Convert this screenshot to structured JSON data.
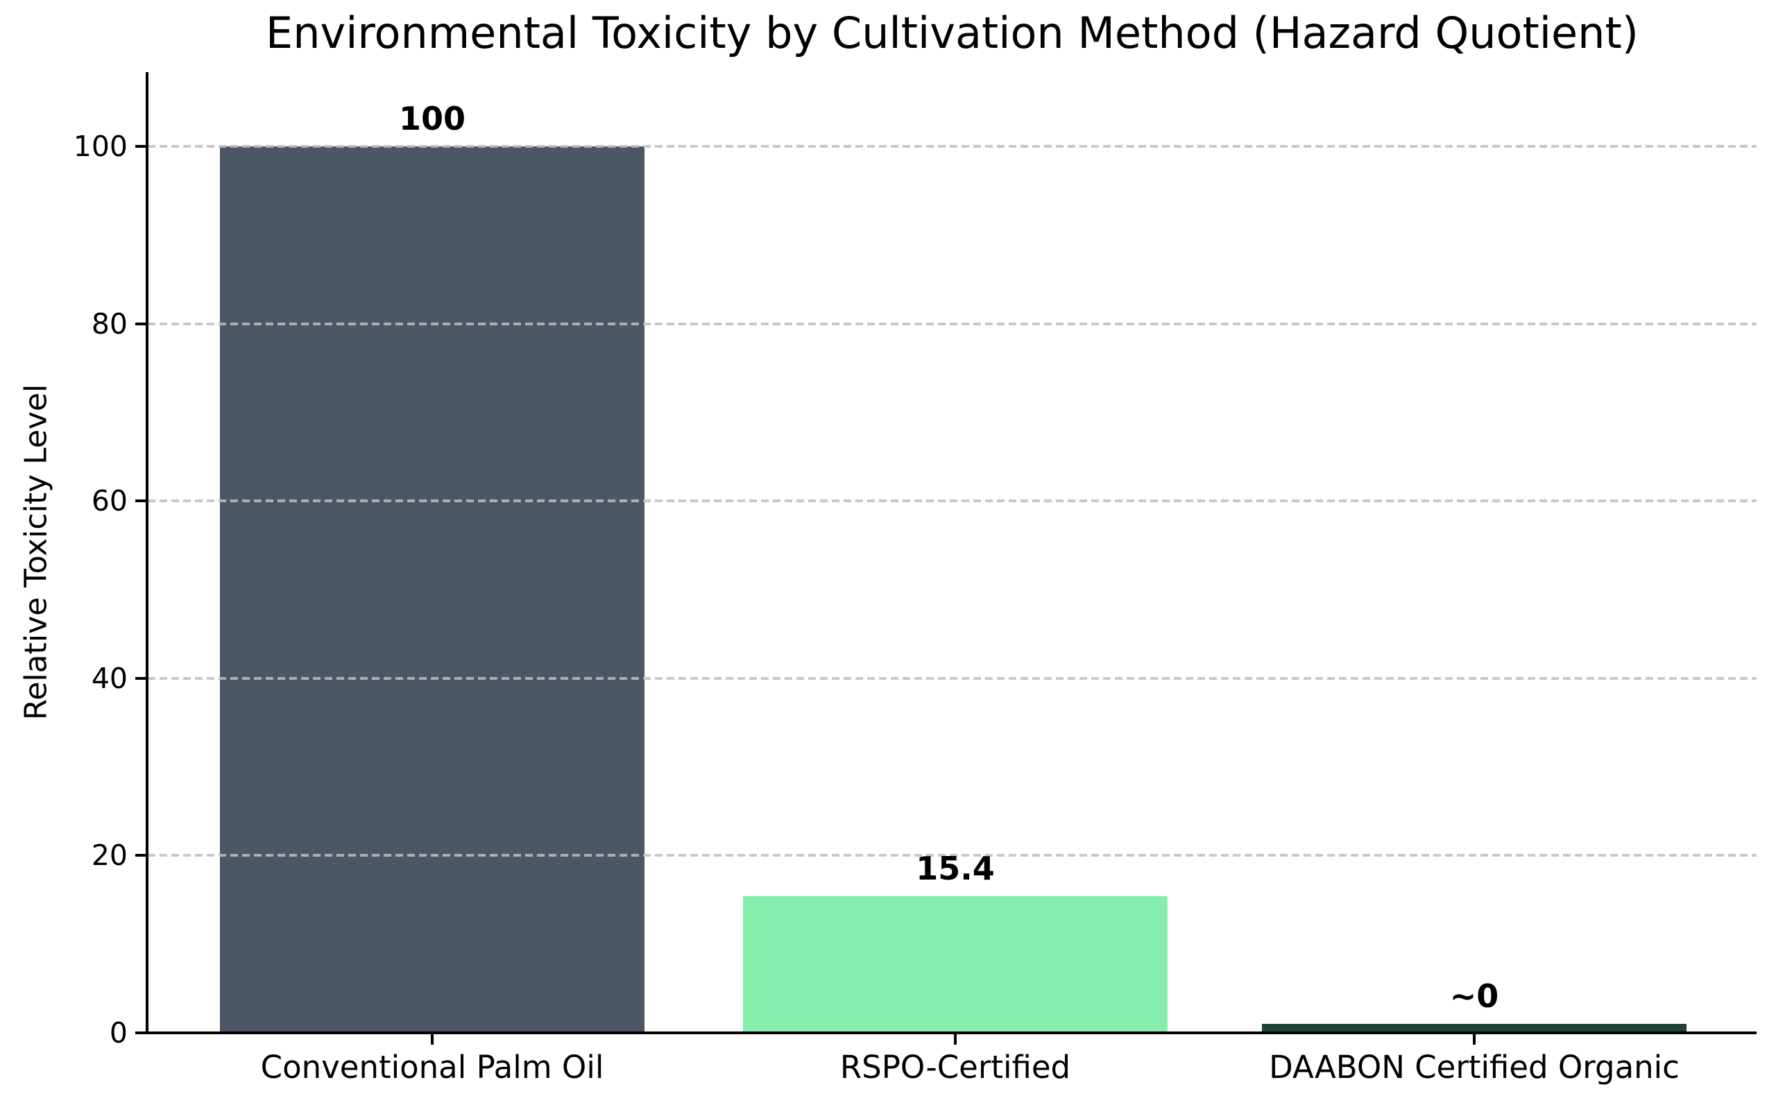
{
  "chart_data": {
    "type": "bar",
    "title": "Environmental Toxicity by Cultivation Method (Hazard Quotient)",
    "xlabel": "",
    "ylabel": "Relative Toxicity Level",
    "categories": [
      "Conventional Palm Oil",
      "RSPO-Certified",
      "DAABON Certified Organic"
    ],
    "values": [
      100,
      15.4,
      1
    ],
    "bar_labels": [
      "100",
      "15.4",
      "~0"
    ],
    "bar_colors": [
      "#4c5665",
      "#86eeac",
      "#1e4433"
    ],
    "yticks": [
      0,
      20,
      40,
      60,
      80,
      100
    ],
    "ylim": [
      0,
      108
    ],
    "grid": "horizontal-dashed",
    "grid_color": "#bebebe",
    "legend": "none",
    "background_color": "#ffffff",
    "text_color": "#000000"
  }
}
